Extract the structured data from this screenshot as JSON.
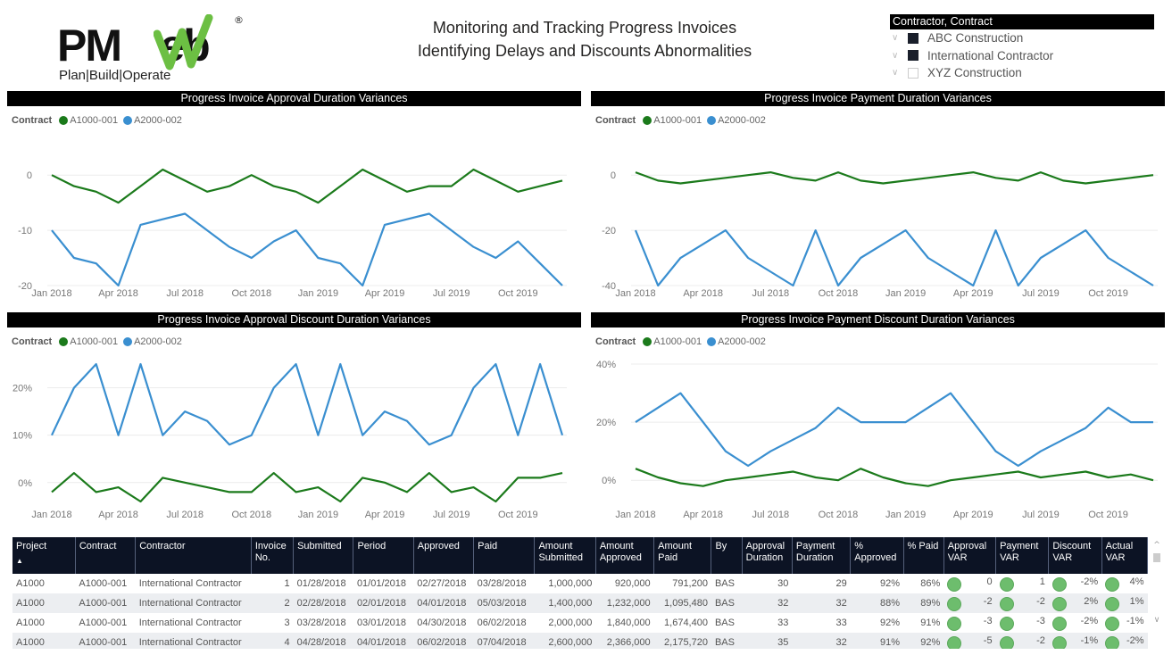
{
  "logo": {
    "brand": "PMWeb",
    "tagline": "Plan|Build|Operate",
    "brand_color": "#6cbf43"
  },
  "header": {
    "title_line1": "Monitoring and Tracking Progress Invoices",
    "title_line2": "Identifying Delays and Discounts Abnormalities"
  },
  "slicer": {
    "title": "Contractor, Contract",
    "items": [
      {
        "label": "ABC Construction",
        "checked": true
      },
      {
        "label": "International Contractor",
        "checked": true
      },
      {
        "label": "XYZ Construction",
        "checked": false
      }
    ]
  },
  "colors": {
    "series1": "#1b7a1b",
    "series2": "#3a8fd0"
  },
  "chart_data": [
    {
      "type": "line",
      "title": "Progress Invoice Approval Duration Variances",
      "legend_title": "Contract",
      "legend_position": "top-left",
      "x": [
        "Jan 2018",
        "Feb 2018",
        "Mar 2018",
        "Apr 2018",
        "May 2018",
        "Jun 2018",
        "Jul 2018",
        "Aug 2018",
        "Sep 2018",
        "Oct 2018",
        "Nov 2018",
        "Dec 2018",
        "Jan 2019",
        "Feb 2019",
        "Mar 2019",
        "Apr 2019",
        "May 2019",
        "Jun 2019",
        "Jul 2019",
        "Aug 2019",
        "Sep 2019",
        "Oct 2019",
        "Nov 2019",
        "Dec 2019"
      ],
      "x_ticks": [
        "Jan 2018",
        "Apr 2018",
        "Jul 2018",
        "Oct 2018",
        "Jan 2019",
        "Apr 2019",
        "Jul 2019",
        "Oct 2019"
      ],
      "y_ticks": [
        "0",
        "-10",
        "-20"
      ],
      "ylim": [
        -20,
        1
      ],
      "y_tick_values": [
        0,
        -10,
        -20
      ],
      "grid": true,
      "series": [
        {
          "name": "A1000-001",
          "values": [
            0,
            -2,
            -3,
            -5,
            -2,
            1,
            -1,
            -3,
            -2,
            0,
            -2,
            -3,
            -5,
            -2,
            1,
            -1,
            -3,
            -2,
            -2,
            1,
            -1,
            -3,
            -2,
            -1
          ]
        },
        {
          "name": "A2000-002",
          "values": [
            -10,
            -15,
            -16,
            -20,
            -9,
            -8,
            -7,
            -10,
            -13,
            -15,
            -12,
            -10,
            -15,
            -16,
            -20,
            -9,
            -8,
            -7,
            -10,
            -13,
            -15,
            -12,
            -16,
            -20
          ]
        }
      ]
    },
    {
      "type": "line",
      "title": "Progress Invoice Payment Duration Variances",
      "legend_title": "Contract",
      "legend_position": "top-left",
      "x": [
        "Jan 2018",
        "Feb 2018",
        "Mar 2018",
        "Apr 2018",
        "May 2018",
        "Jun 2018",
        "Jul 2018",
        "Aug 2018",
        "Sep 2018",
        "Oct 2018",
        "Nov 2018",
        "Dec 2018",
        "Jan 2019",
        "Feb 2019",
        "Mar 2019",
        "Apr 2019",
        "May 2019",
        "Jun 2019",
        "Jul 2019",
        "Aug 2019",
        "Sep 2019",
        "Oct 2019",
        "Nov 2019",
        "Dec 2019"
      ],
      "x_ticks": [
        "Jan 2018",
        "Apr 2018",
        "Jul 2018",
        "Oct 2018",
        "Jan 2019",
        "Apr 2019",
        "Jul 2019",
        "Oct 2019"
      ],
      "y_ticks": [
        "0",
        "-20",
        "-40"
      ],
      "ylim": [
        -40,
        2
      ],
      "y_tick_values": [
        0,
        -20,
        -40
      ],
      "grid": true,
      "series": [
        {
          "name": "A1000-001",
          "values": [
            1,
            -2,
            -3,
            -2,
            -1,
            0,
            1,
            -1,
            -2,
            1,
            -2,
            -3,
            -2,
            -1,
            0,
            1,
            -1,
            -2,
            1,
            -2,
            -3,
            -2,
            -1,
            0
          ]
        },
        {
          "name": "A2000-002",
          "values": [
            -20,
            -40,
            -30,
            -25,
            -20,
            -30,
            -35,
            -40,
            -20,
            -40,
            -30,
            -25,
            -20,
            -30,
            -35,
            -40,
            -20,
            -40,
            -30,
            -25,
            -20,
            -30,
            -35,
            -40
          ]
        }
      ]
    },
    {
      "type": "line",
      "title": "Progress Invoice Approval Discount Duration Variances",
      "legend_title": "Contract",
      "legend_position": "top-left",
      "x": [
        "Jan 2018",
        "Feb 2018",
        "Mar 2018",
        "Apr 2018",
        "May 2018",
        "Jun 2018",
        "Jul 2018",
        "Aug 2018",
        "Sep 2018",
        "Oct 2018",
        "Nov 2018",
        "Dec 2018",
        "Jan 2019",
        "Feb 2019",
        "Mar 2019",
        "Apr 2019",
        "May 2019",
        "Jun 2019",
        "Jul 2019",
        "Aug 2019",
        "Sep 2019",
        "Oct 2019",
        "Nov 2019",
        "Dec 2019"
      ],
      "x_ticks": [
        "Jan 2018",
        "Apr 2018",
        "Jul 2018",
        "Oct 2018",
        "Jan 2019",
        "Apr 2019",
        "Jul 2019",
        "Oct 2019"
      ],
      "y_ticks": [
        "20%",
        "10%",
        "0%"
      ],
      "ylim": [
        -4,
        25
      ],
      "y_tick_values": [
        20,
        10,
        0
      ],
      "grid": true,
      "series": [
        {
          "name": "A1000-001",
          "values": [
            -2,
            2,
            -2,
            -1,
            -4,
            1,
            0,
            -1,
            -2,
            -2,
            2,
            -2,
            -1,
            -4,
            1,
            0,
            -2,
            2,
            -2,
            -1,
            -4,
            1,
            1,
            2
          ]
        },
        {
          "name": "A2000-002",
          "values": [
            10,
            20,
            25,
            10,
            25,
            10,
            15,
            13,
            8,
            10,
            20,
            25,
            10,
            25,
            10,
            15,
            13,
            8,
            10,
            20,
            25,
            10,
            25,
            10
          ]
        }
      ]
    },
    {
      "type": "line",
      "title": "Progress Invoice Payment Discount Duration Variances",
      "legend_title": "Contract",
      "legend_position": "top-left",
      "x": [
        "Jan 2018",
        "Feb 2018",
        "Mar 2018",
        "Apr 2018",
        "May 2018",
        "Jun 2018",
        "Jul 2018",
        "Aug 2018",
        "Sep 2018",
        "Oct 2018",
        "Nov 2018",
        "Dec 2018",
        "Jan 2019",
        "Feb 2019",
        "Mar 2019",
        "Apr 2019",
        "May 2019",
        "Jun 2019",
        "Jul 2019",
        "Aug 2019",
        "Sep 2019",
        "Oct 2019",
        "Nov 2019",
        "Dec 2019"
      ],
      "x_ticks": [
        "Jan 2018",
        "Apr 2018",
        "Jul 2018",
        "Oct 2018",
        "Jan 2019",
        "Apr 2019",
        "Jul 2019",
        "Oct 2019"
      ],
      "y_ticks": [
        "40%",
        "20%",
        "0%"
      ],
      "ylim": [
        -3,
        40
      ],
      "y_tick_values": [
        40,
        20,
        0
      ],
      "grid": true,
      "series": [
        {
          "name": "A1000-001",
          "values": [
            4,
            1,
            -1,
            -2,
            0,
            1,
            2,
            3,
            1,
            0,
            4,
            1,
            -1,
            -2,
            0,
            1,
            2,
            3,
            1,
            2,
            3,
            1,
            2,
            0
          ]
        },
        {
          "name": "A2000-002",
          "values": [
            20,
            25,
            30,
            20,
            10,
            5,
            10,
            14,
            18,
            25,
            20,
            20,
            20,
            25,
            30,
            20,
            10,
            5,
            10,
            14,
            18,
            25,
            20,
            20
          ]
        }
      ]
    }
  ],
  "table": {
    "columns": [
      "Project",
      "Contract",
      "Contractor",
      "Invoice No.",
      "Submitted",
      "Period",
      "Approved",
      "Paid",
      "Amount Submitted",
      "Amount Approved",
      "Amount Paid",
      "By",
      "Approval Duration",
      "Payment Duration",
      "% Approved",
      "% Paid",
      "Approval VAR",
      "Payment VAR",
      "Discount VAR",
      "Actual VAR"
    ],
    "sort_column": "Project",
    "sort_direction": "ascending",
    "rows": [
      [
        "A1000",
        "A1000-001",
        "International Contractor",
        "1",
        "01/28/2018",
        "01/01/2018",
        "02/27/2018",
        "03/28/2018",
        "1,000,000",
        "920,000",
        "791,200",
        "BAS",
        "30",
        "29",
        "92%",
        "86%",
        "0",
        "1",
        "-2%",
        "4%"
      ],
      [
        "A1000",
        "A1000-001",
        "International Contractor",
        "2",
        "02/28/2018",
        "02/01/2018",
        "04/01/2018",
        "05/03/2018",
        "1,400,000",
        "1,232,000",
        "1,095,480",
        "BAS",
        "32",
        "32",
        "88%",
        "89%",
        "-2",
        "-2",
        "2%",
        "1%"
      ],
      [
        "A1000",
        "A1000-001",
        "International Contractor",
        "3",
        "03/28/2018",
        "03/01/2018",
        "04/30/2018",
        "06/02/2018",
        "2,000,000",
        "1,840,000",
        "1,674,400",
        "BAS",
        "33",
        "33",
        "92%",
        "91%",
        "-3",
        "-3",
        "-2%",
        "-1%"
      ],
      [
        "A1000",
        "A1000-001",
        "International Contractor",
        "4",
        "04/28/2018",
        "04/01/2018",
        "06/02/2018",
        "07/04/2018",
        "2,600,000",
        "2,366,000",
        "2,175,720",
        "BAS",
        "35",
        "32",
        "91%",
        "92%",
        "-5",
        "-2",
        "-1%",
        "-2%"
      ]
    ],
    "indicator_color": "#6dbd6d"
  }
}
